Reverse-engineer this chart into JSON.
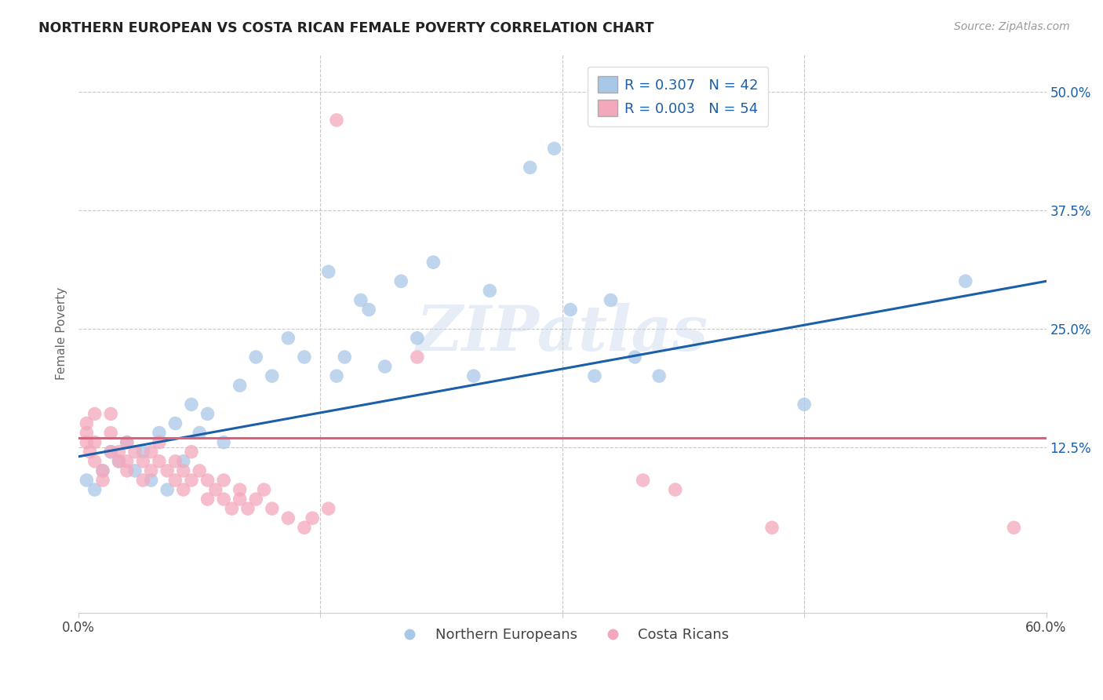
{
  "title": "NORTHERN EUROPEAN VS COSTA RICAN FEMALE POVERTY CORRELATION CHART",
  "source": "Source: ZipAtlas.com",
  "ylabel": "Female Poverty",
  "ytick_labels": [
    "12.5%",
    "25.0%",
    "37.5%",
    "50.0%"
  ],
  "ytick_values": [
    0.125,
    0.25,
    0.375,
    0.5
  ],
  "xlim": [
    0.0,
    0.6
  ],
  "ylim": [
    -0.05,
    0.54
  ],
  "northern_european_color": "#a8c8e8",
  "costa_rican_color": "#f4a8bc",
  "trend_blue": "#1a5fa8",
  "trend_pink": "#e0607a",
  "r_ne": 0.307,
  "n_ne": 42,
  "r_cr": 0.003,
  "n_cr": 54,
  "watermark": "ZIPatlas",
  "background_color": "#ffffff",
  "grid_color": "#c8c8c8",
  "ne_x": [
    0.005,
    0.01,
    0.015,
    0.02,
    0.025,
    0.03,
    0.035,
    0.04,
    0.045,
    0.05,
    0.055,
    0.06,
    0.065,
    0.07,
    0.075,
    0.08,
    0.09,
    0.1,
    0.11,
    0.12,
    0.13,
    0.14,
    0.155,
    0.16,
    0.165,
    0.175,
    0.18,
    0.19,
    0.2,
    0.21,
    0.22,
    0.245,
    0.255,
    0.28,
    0.295,
    0.305,
    0.32,
    0.33,
    0.345,
    0.36,
    0.45,
    0.55
  ],
  "ne_y": [
    0.09,
    0.08,
    0.1,
    0.12,
    0.11,
    0.13,
    0.1,
    0.12,
    0.09,
    0.14,
    0.08,
    0.15,
    0.11,
    0.17,
    0.14,
    0.16,
    0.13,
    0.19,
    0.22,
    0.2,
    0.24,
    0.22,
    0.31,
    0.2,
    0.22,
    0.28,
    0.27,
    0.21,
    0.3,
    0.24,
    0.32,
    0.2,
    0.29,
    0.42,
    0.44,
    0.27,
    0.2,
    0.28,
    0.22,
    0.2,
    0.17,
    0.3
  ],
  "cr_x": [
    0.005,
    0.005,
    0.005,
    0.007,
    0.01,
    0.01,
    0.01,
    0.015,
    0.015,
    0.02,
    0.02,
    0.02,
    0.025,
    0.025,
    0.03,
    0.03,
    0.03,
    0.035,
    0.04,
    0.04,
    0.045,
    0.045,
    0.05,
    0.05,
    0.055,
    0.06,
    0.06,
    0.065,
    0.065,
    0.07,
    0.07,
    0.075,
    0.08,
    0.08,
    0.085,
    0.09,
    0.09,
    0.095,
    0.1,
    0.1,
    0.105,
    0.11,
    0.115,
    0.12,
    0.13,
    0.14,
    0.145,
    0.155,
    0.16,
    0.21,
    0.35,
    0.37,
    0.43,
    0.58
  ],
  "cr_y": [
    0.13,
    0.14,
    0.15,
    0.12,
    0.11,
    0.13,
    0.16,
    0.09,
    0.1,
    0.12,
    0.14,
    0.16,
    0.11,
    0.12,
    0.1,
    0.11,
    0.13,
    0.12,
    0.09,
    0.11,
    0.1,
    0.12,
    0.11,
    0.13,
    0.1,
    0.09,
    0.11,
    0.08,
    0.1,
    0.09,
    0.12,
    0.1,
    0.07,
    0.09,
    0.08,
    0.07,
    0.09,
    0.06,
    0.07,
    0.08,
    0.06,
    0.07,
    0.08,
    0.06,
    0.05,
    0.04,
    0.05,
    0.06,
    0.47,
    0.22,
    0.09,
    0.08,
    0.04,
    0.04
  ],
  "trend_ne_x0": 0.0,
  "trend_ne_y0": 0.115,
  "trend_ne_x1": 0.6,
  "trend_ne_y1": 0.3,
  "trend_cr_y": 0.135
}
